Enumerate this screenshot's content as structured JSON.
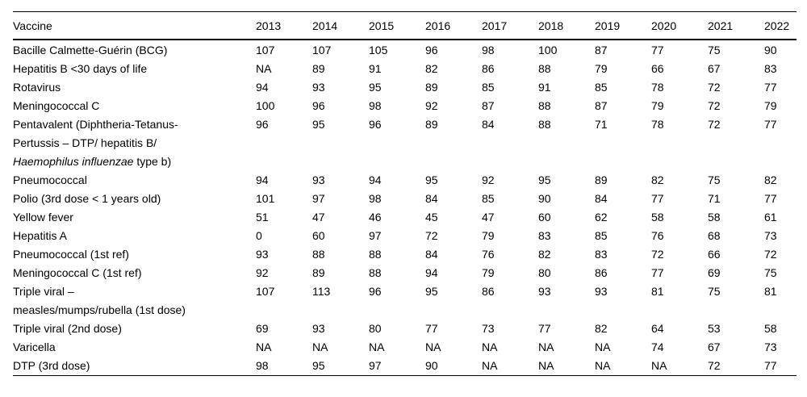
{
  "page": {
    "background_color": "#ffffff",
    "text_color": "#000000",
    "rule_color": "#000000"
  },
  "table": {
    "header": {
      "vaccine_label": "Vaccine",
      "years": [
        "2013",
        "2014",
        "2015",
        "2016",
        "2017",
        "2018",
        "2019",
        "2020",
        "2021",
        "2022"
      ]
    },
    "rows": [
      {
        "name_lines": [
          [
            {
              "t": "Bacille Calmette-Guérin (BCG)",
              "i": false
            }
          ]
        ],
        "values": [
          "107",
          "107",
          "105",
          "96",
          "98",
          "100",
          "87",
          "77",
          "75",
          "90"
        ]
      },
      {
        "name_lines": [
          [
            {
              "t": "Hepatitis B <30 days of life",
              "i": false
            }
          ]
        ],
        "values": [
          "NA",
          "89",
          "91",
          "82",
          "86",
          "88",
          "79",
          "66",
          "67",
          "83"
        ]
      },
      {
        "name_lines": [
          [
            {
              "t": "Rotavirus",
              "i": false
            }
          ]
        ],
        "values": [
          "94",
          "93",
          "95",
          "89",
          "85",
          "91",
          "85",
          "78",
          "72",
          "77"
        ]
      },
      {
        "name_lines": [
          [
            {
              "t": "Meningococcal C",
              "i": false
            }
          ]
        ],
        "values": [
          "100",
          "96",
          "98",
          "92",
          "87",
          "88",
          "87",
          "79",
          "72",
          "79"
        ]
      },
      {
        "name_lines": [
          [
            {
              "t": "Pentavalent (Diphtheria-Tetanus-",
              "i": false
            }
          ],
          [
            {
              "t": "Pertussis – DTP/ hepatitis B/",
              "i": false
            }
          ],
          [
            {
              "t": "Haemophilus influenzae",
              "i": true
            },
            {
              "t": " type b)",
              "i": false
            }
          ]
        ],
        "values": [
          "96",
          "95",
          "96",
          "89",
          "84",
          "88",
          "71",
          "78",
          "72",
          "77"
        ]
      },
      {
        "name_lines": [
          [
            {
              "t": "Pneumococcal",
              "i": false
            }
          ]
        ],
        "values": [
          "94",
          "93",
          "94",
          "95",
          "92",
          "95",
          "89",
          "82",
          "75",
          "82"
        ]
      },
      {
        "name_lines": [
          [
            {
              "t": "Polio (3rd dose < 1 years old)",
              "i": false
            }
          ]
        ],
        "values": [
          "101",
          "97",
          "98",
          "84",
          "85",
          "90",
          "84",
          "77",
          "71",
          "77"
        ]
      },
      {
        "name_lines": [
          [
            {
              "t": "Yellow fever",
              "i": false
            }
          ]
        ],
        "values": [
          "51",
          "47",
          "46",
          "45",
          "47",
          "60",
          "62",
          "58",
          "58",
          "61"
        ]
      },
      {
        "name_lines": [
          [
            {
              "t": "Hepatitis A",
              "i": false
            }
          ]
        ],
        "values": [
          "0",
          "60",
          "97",
          "72",
          "79",
          "83",
          "85",
          "76",
          "68",
          "73"
        ]
      },
      {
        "name_lines": [
          [
            {
              "t": "Pneumococcal (1st ref)",
              "i": false
            }
          ]
        ],
        "values": [
          "93",
          "88",
          "88",
          "84",
          "76",
          "82",
          "83",
          "72",
          "66",
          "72"
        ]
      },
      {
        "name_lines": [
          [
            {
              "t": "Meningococcal C (1st ref)",
              "i": false
            }
          ]
        ],
        "values": [
          "92",
          "89",
          "88",
          "94",
          "79",
          "80",
          "86",
          "77",
          "69",
          "75"
        ]
      },
      {
        "name_lines": [
          [
            {
              "t": "Triple viral –",
              "i": false
            }
          ],
          [
            {
              "t": "measles/mumps/rubella (1st dose)",
              "i": false
            }
          ]
        ],
        "values": [
          "107",
          "113",
          "96",
          "95",
          "86",
          "93",
          "93",
          "81",
          "75",
          "81"
        ]
      },
      {
        "name_lines": [
          [
            {
              "t": "Triple viral (2nd dose)",
              "i": false
            }
          ]
        ],
        "values": [
          "69",
          "93",
          "80",
          "77",
          "73",
          "77",
          "82",
          "64",
          "53",
          "58"
        ]
      },
      {
        "name_lines": [
          [
            {
              "t": "Varicella",
              "i": false
            }
          ]
        ],
        "values": [
          "NA",
          "NA",
          "NA",
          "NA",
          "NA",
          "NA",
          "NA",
          "74",
          "67",
          "73"
        ]
      },
      {
        "name_lines": [
          [
            {
              "t": "DTP (3rd dose)",
              "i": false
            }
          ]
        ],
        "values": [
          "98",
          "95",
          "97",
          "90",
          "NA",
          "NA",
          "NA",
          "NA",
          "72",
          "77"
        ]
      }
    ]
  }
}
